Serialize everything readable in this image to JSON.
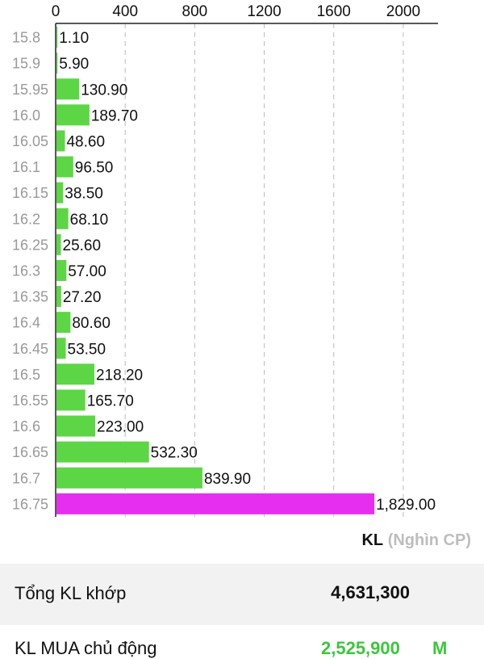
{
  "chart_data": {
    "type": "bar",
    "orientation": "horizontal",
    "categories": [
      "15.8",
      "15.9",
      "15.95",
      "16.0",
      "16.05",
      "16.1",
      "16.15",
      "16.2",
      "16.25",
      "16.3",
      "16.35",
      "16.4",
      "16.45",
      "16.5",
      "16.55",
      "16.6",
      "16.65",
      "16.7",
      "16.75"
    ],
    "values": [
      1.1,
      5.9,
      130.9,
      189.7,
      48.6,
      96.5,
      38.5,
      68.1,
      25.6,
      57.0,
      27.2,
      80.6,
      53.5,
      218.2,
      165.7,
      223.0,
      532.3,
      839.9,
      1829.0
    ],
    "value_labels": [
      "1.10",
      "5.90",
      "130.90",
      "189.70",
      "48.60",
      "96.50",
      "38.50",
      "68.10",
      "25.60",
      "57.00",
      "27.20",
      "80.60",
      "53.50",
      "218.20",
      "165.70",
      "223.00",
      "532.30",
      "839.90",
      "1,829.00"
    ],
    "highlight_index": 18,
    "xticks": [
      "0",
      "400",
      "800",
      "1200",
      "1600",
      "2000"
    ],
    "xtick_values": [
      0,
      400,
      800,
      1200,
      1600,
      2000
    ],
    "xlim": [
      0,
      2200
    ],
    "grid": true,
    "axis_position": "top",
    "colors": {
      "bar": "#5cd645",
      "highlight": "#e62ef0",
      "grid": "#bbbbbb",
      "axis": "#222222",
      "tick_text": "#111111",
      "category_text": "#999999"
    }
  },
  "unit": {
    "kl": "KL",
    "unit": "(Nghìn CP)"
  },
  "summary": {
    "label": "Tổng KL khớp",
    "value": "4,631,300"
  },
  "buy": {
    "label": "KL MUA chủ động",
    "value": "2,525,900",
    "suffix": "M"
  }
}
